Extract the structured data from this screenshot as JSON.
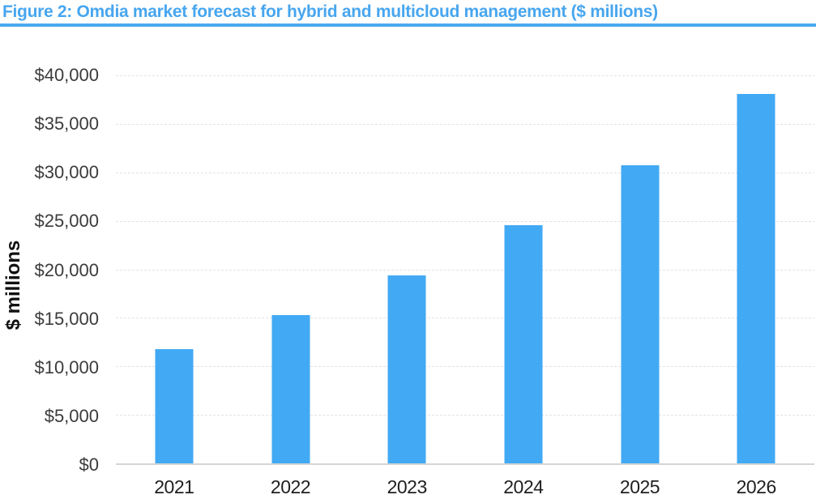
{
  "title": "Figure 2: Omdia market forecast for hybrid and multicloud management ($ millions)",
  "colors": {
    "title_blue": "#47A6EF",
    "underline_blue": "#4AA9F0",
    "bar_blue": "#42A9F4",
    "gridline_gray": "#E3E3E3",
    "axis_gray": "#D5D5D5",
    "tick_text": "#3b3b3b"
  },
  "chart_data": {
    "type": "bar",
    "title": "Figure 2: Omdia market forecast for hybrid and multicloud management ($ millions)",
    "categories": [
      "2021",
      "2022",
      "2023",
      "2024",
      "2025",
      "2026"
    ],
    "values": [
      11800,
      15250,
      19350,
      24550,
      30700,
      38100
    ],
    "xlabel": "",
    "ylabel": "$ millions",
    "ylim": [
      0,
      40000
    ],
    "ytick_step": 5000,
    "ytick_labels": [
      "$0",
      "$5,000",
      "$10,000",
      "$15,000",
      "$20,000",
      "$25,000",
      "$30,000",
      "$35,000",
      "$40,000"
    ],
    "grid": true,
    "legend": false,
    "bar_color": "#42A9F4"
  }
}
